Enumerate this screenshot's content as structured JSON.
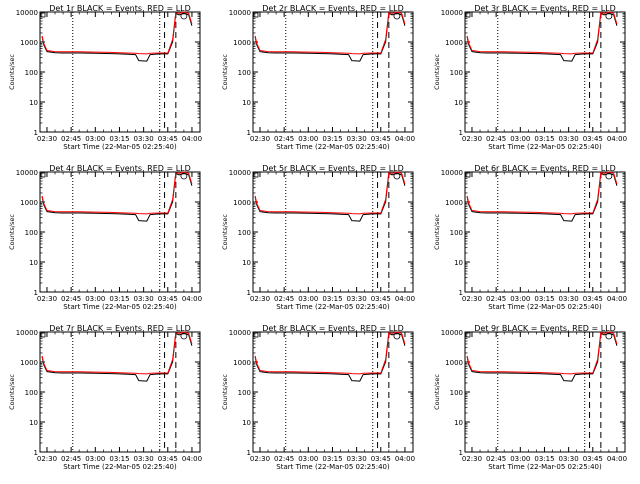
{
  "colors": {
    "events": "#000000",
    "lld": "#ff0000",
    "background": "#ffffff"
  },
  "chart_data": [
    {
      "type": "line",
      "title": "Det 1r BLACK = Events, RED = LLD",
      "xlabel": "Start Time (22-Mar-05 02:25:40)",
      "ylabel": "Counts/sec",
      "y_scale": "log",
      "ylim": [
        1,
        10000
      ],
      "x_tick_labels": [
        "02:30",
        "02:45",
        "03:00",
        "03:15",
        "03:30",
        "03:45",
        "04:00"
      ],
      "y_tick_labels": [
        "1",
        "10",
        "100",
        "1000",
        "10000"
      ],
      "x": [
        "02:27",
        "02:28",
        "02:30",
        "02:35",
        "02:40",
        "02:50",
        "03:00",
        "03:10",
        "03:15",
        "03:20",
        "03:25",
        "03:27",
        "03:32",
        "03:34",
        "03:40",
        "03:45",
        "03:48",
        "03:50",
        "03:52",
        "03:55",
        "03:58",
        "04:00"
      ],
      "series": [
        {
          "name": "Events",
          "values": [
            1500,
            800,
            480,
            440,
            430,
            430,
            420,
            410,
            400,
            390,
            380,
            240,
            230,
            380,
            400,
            400,
            1000,
            9000,
            8000,
            9000,
            8000,
            3500
          ]
        },
        {
          "name": "LLD",
          "values": [
            1600,
            900,
            520,
            480,
            470,
            470,
            460,
            450,
            440,
            430,
            420,
            410,
            400,
            420,
            430,
            430,
            1200,
            9500,
            9000,
            10000,
            9000,
            4000
          ]
        }
      ]
    },
    {
      "type": "line",
      "title": "Det 2r BLACK = Events, RED = LLD",
      "xlabel": "Start Time (22-Mar-05 02:25:40)",
      "ylabel": "Counts/sec",
      "y_scale": "log",
      "ylim": [
        1,
        10000
      ],
      "x_tick_labels": [
        "02:30",
        "02:45",
        "03:00",
        "03:15",
        "03:30",
        "03:45",
        "04:00"
      ],
      "y_tick_labels": [
        "1",
        "10",
        "100",
        "1000",
        "10000"
      ],
      "x": [
        "02:27",
        "02:28",
        "02:30",
        "02:35",
        "02:40",
        "02:50",
        "03:00",
        "03:10",
        "03:15",
        "03:20",
        "03:25",
        "03:27",
        "03:32",
        "03:34",
        "03:40",
        "03:45",
        "03:48",
        "03:50",
        "03:52",
        "03:55",
        "03:58",
        "04:00"
      ],
      "series": [
        {
          "name": "Events",
          "values": [
            1500,
            800,
            480,
            440,
            430,
            430,
            420,
            410,
            400,
            390,
            380,
            240,
            230,
            380,
            400,
            400,
            1000,
            9000,
            8000,
            9000,
            8000,
            3500
          ]
        },
        {
          "name": "LLD",
          "values": [
            1600,
            900,
            520,
            480,
            470,
            470,
            460,
            450,
            440,
            430,
            420,
            410,
            400,
            420,
            430,
            430,
            1200,
            9500,
            9000,
            10000,
            9000,
            4000
          ]
        }
      ]
    },
    {
      "type": "line",
      "title": "Det 3r BLACK = Events, RED = LLD",
      "xlabel": "Start Time (22-Mar-05 02:25:40)",
      "ylabel": "Counts/sec",
      "y_scale": "log",
      "ylim": [
        1,
        10000
      ],
      "x_tick_labels": [
        "02:30",
        "02:45",
        "03:00",
        "03:15",
        "03:30",
        "03:45",
        "04:00"
      ],
      "y_tick_labels": [
        "1",
        "10",
        "100",
        "1000",
        "10000"
      ],
      "x": [
        "02:27",
        "02:28",
        "02:30",
        "02:35",
        "02:40",
        "02:50",
        "03:00",
        "03:10",
        "03:15",
        "03:20",
        "03:25",
        "03:27",
        "03:32",
        "03:34",
        "03:40",
        "03:45",
        "03:48",
        "03:50",
        "03:52",
        "03:55",
        "03:58",
        "04:00"
      ],
      "series": [
        {
          "name": "Events",
          "values": [
            1500,
            800,
            480,
            440,
            430,
            430,
            420,
            410,
            400,
            390,
            380,
            240,
            230,
            380,
            400,
            400,
            1000,
            9000,
            8000,
            9000,
            8000,
            3500
          ]
        },
        {
          "name": "LLD",
          "values": [
            1600,
            900,
            520,
            480,
            470,
            470,
            460,
            450,
            440,
            430,
            420,
            410,
            400,
            420,
            430,
            430,
            1200,
            9500,
            9000,
            10000,
            9000,
            4000
          ]
        }
      ]
    },
    {
      "type": "line",
      "title": "Det 4r BLACK = Events, RED = LLD",
      "xlabel": "Start Time (22-Mar-05 02:25:40)",
      "ylabel": "Counts/sec",
      "y_scale": "log",
      "ylim": [
        1,
        10000
      ],
      "x_tick_labels": [
        "02:30",
        "02:45",
        "03:00",
        "03:15",
        "03:30",
        "03:45",
        "04:00"
      ],
      "y_tick_labels": [
        "1",
        "10",
        "100",
        "1000",
        "10000"
      ],
      "x": [
        "02:27",
        "02:28",
        "02:30",
        "02:35",
        "02:40",
        "02:50",
        "03:00",
        "03:10",
        "03:15",
        "03:20",
        "03:25",
        "03:27",
        "03:32",
        "03:34",
        "03:40",
        "03:45",
        "03:48",
        "03:50",
        "03:52",
        "03:55",
        "03:58",
        "04:00"
      ],
      "series": [
        {
          "name": "Events",
          "values": [
            1500,
            800,
            480,
            440,
            430,
            430,
            420,
            410,
            400,
            390,
            380,
            240,
            230,
            380,
            400,
            400,
            1000,
            9000,
            8000,
            9000,
            8000,
            3500
          ]
        },
        {
          "name": "LLD",
          "values": [
            1600,
            900,
            520,
            480,
            470,
            470,
            460,
            450,
            440,
            430,
            420,
            410,
            400,
            420,
            430,
            430,
            1200,
            9500,
            9000,
            10000,
            9000,
            4000
          ]
        }
      ]
    },
    {
      "type": "line",
      "title": "Det 5r BLACK = Events, RED = LLD",
      "xlabel": "Start Time (22-Mar-05 02:25:40)",
      "ylabel": "Counts/sec",
      "y_scale": "log",
      "ylim": [
        1,
        10000
      ],
      "x_tick_labels": [
        "02:30",
        "02:45",
        "03:00",
        "03:15",
        "03:30",
        "03:45",
        "04:00"
      ],
      "y_tick_labels": [
        "1",
        "10",
        "100",
        "1000",
        "10000"
      ],
      "x": [
        "02:27",
        "02:28",
        "02:30",
        "02:35",
        "02:40",
        "02:50",
        "03:00",
        "03:10",
        "03:15",
        "03:20",
        "03:25",
        "03:27",
        "03:32",
        "03:34",
        "03:40",
        "03:45",
        "03:48",
        "03:50",
        "03:52",
        "03:55",
        "03:58",
        "04:00"
      ],
      "series": [
        {
          "name": "Events",
          "values": [
            1500,
            800,
            480,
            440,
            430,
            430,
            420,
            410,
            400,
            390,
            380,
            240,
            230,
            380,
            400,
            400,
            1000,
            9000,
            8000,
            9000,
            8000,
            3500
          ]
        },
        {
          "name": "LLD",
          "values": [
            1600,
            900,
            520,
            480,
            470,
            470,
            460,
            450,
            440,
            430,
            420,
            410,
            400,
            420,
            430,
            430,
            1200,
            9500,
            9000,
            10000,
            9000,
            4000
          ]
        }
      ]
    },
    {
      "type": "line",
      "title": "Det 6r BLACK = Events, RED = LLD",
      "xlabel": "Start Time (22-Mar-05 02:25:40)",
      "ylabel": "Counts/sec",
      "y_scale": "log",
      "ylim": [
        1,
        10000
      ],
      "x_tick_labels": [
        "02:30",
        "02:45",
        "03:00",
        "03:15",
        "03:30",
        "03:45",
        "04:00"
      ],
      "y_tick_labels": [
        "1",
        "10",
        "100",
        "1000",
        "10000"
      ],
      "x": [
        "02:27",
        "02:28",
        "02:30",
        "02:35",
        "02:40",
        "02:50",
        "03:00",
        "03:10",
        "03:15",
        "03:20",
        "03:25",
        "03:27",
        "03:32",
        "03:34",
        "03:40",
        "03:45",
        "03:48",
        "03:50",
        "03:52",
        "03:55",
        "03:58",
        "04:00"
      ],
      "series": [
        {
          "name": "Events",
          "values": [
            1500,
            800,
            480,
            440,
            430,
            430,
            420,
            410,
            400,
            390,
            380,
            240,
            230,
            380,
            400,
            400,
            1000,
            9000,
            8000,
            9000,
            8000,
            3500
          ]
        },
        {
          "name": "LLD",
          "values": [
            1600,
            900,
            520,
            480,
            470,
            470,
            460,
            450,
            440,
            430,
            420,
            410,
            400,
            420,
            430,
            430,
            1200,
            9500,
            9000,
            10000,
            9000,
            4000
          ]
        }
      ]
    },
    {
      "type": "line",
      "title": "Det 7r BLACK = Events, RED = LLD",
      "xlabel": "Start Time (22-Mar-05 02:25:40)",
      "ylabel": "Counts/sec",
      "y_scale": "log",
      "ylim": [
        1,
        10000
      ],
      "x_tick_labels": [
        "02:30",
        "02:45",
        "03:00",
        "03:15",
        "03:30",
        "03:45",
        "04:00"
      ],
      "y_tick_labels": [
        "1",
        "10",
        "100",
        "1000",
        "10000"
      ],
      "x": [
        "02:27",
        "02:28",
        "02:30",
        "02:35",
        "02:40",
        "02:50",
        "03:00",
        "03:10",
        "03:15",
        "03:20",
        "03:25",
        "03:27",
        "03:32",
        "03:34",
        "03:40",
        "03:45",
        "03:48",
        "03:50",
        "03:52",
        "03:55",
        "03:58",
        "04:00"
      ],
      "series": [
        {
          "name": "Events",
          "values": [
            1500,
            800,
            480,
            440,
            430,
            430,
            420,
            410,
            400,
            390,
            380,
            240,
            230,
            380,
            400,
            400,
            1000,
            9000,
            8000,
            9000,
            8000,
            3500
          ]
        },
        {
          "name": "LLD",
          "values": [
            1600,
            900,
            520,
            480,
            470,
            470,
            460,
            450,
            440,
            430,
            420,
            410,
            400,
            420,
            430,
            430,
            1200,
            9500,
            9000,
            10000,
            9000,
            4000
          ]
        }
      ]
    },
    {
      "type": "line",
      "title": "Det 8r BLACK = Events, RED = LLD",
      "xlabel": "Start Time (22-Mar-05 02:25:40)",
      "ylabel": "Counts/sec",
      "y_scale": "log",
      "ylim": [
        1,
        10000
      ],
      "x_tick_labels": [
        "02:30",
        "02:45",
        "03:00",
        "03:15",
        "03:30",
        "03:45",
        "04:00"
      ],
      "y_tick_labels": [
        "1",
        "10",
        "100",
        "1000",
        "10000"
      ],
      "x": [
        "02:27",
        "02:28",
        "02:30",
        "02:35",
        "02:40",
        "02:50",
        "03:00",
        "03:10",
        "03:15",
        "03:20",
        "03:25",
        "03:27",
        "03:32",
        "03:34",
        "03:40",
        "03:45",
        "03:48",
        "03:50",
        "03:52",
        "03:55",
        "03:58",
        "04:00"
      ],
      "series": [
        {
          "name": "Events",
          "values": [
            1500,
            800,
            480,
            440,
            430,
            430,
            420,
            410,
            400,
            390,
            380,
            240,
            230,
            380,
            400,
            400,
            1000,
            9000,
            8000,
            9000,
            8000,
            3500
          ]
        },
        {
          "name": "LLD",
          "values": [
            1600,
            900,
            520,
            480,
            470,
            470,
            460,
            450,
            440,
            430,
            420,
            410,
            400,
            420,
            430,
            430,
            1200,
            9500,
            9000,
            10000,
            9000,
            4000
          ]
        }
      ]
    },
    {
      "type": "line",
      "title": "Det 9r BLACK = Events, RED = LLD",
      "xlabel": "Start Time (22-Mar-05 02:25:40)",
      "ylabel": "Counts/sec",
      "y_scale": "log",
      "ylim": [
        1,
        10000
      ],
      "x_tick_labels": [
        "02:30",
        "02:45",
        "03:00",
        "03:15",
        "03:30",
        "03:45",
        "04:00"
      ],
      "y_tick_labels": [
        "1",
        "10",
        "100",
        "1000",
        "10000"
      ],
      "x": [
        "02:27",
        "02:28",
        "02:30",
        "02:35",
        "02:40",
        "02:50",
        "03:00",
        "03:10",
        "03:15",
        "03:20",
        "03:25",
        "03:27",
        "03:32",
        "03:34",
        "03:40",
        "03:45",
        "03:48",
        "03:50",
        "03:52",
        "03:55",
        "03:58",
        "04:00"
      ],
      "series": [
        {
          "name": "Events",
          "values": [
            1500,
            800,
            480,
            440,
            430,
            430,
            420,
            410,
            400,
            390,
            380,
            240,
            230,
            380,
            400,
            400,
            1000,
            9000,
            8000,
            9000,
            8000,
            3500
          ]
        },
        {
          "name": "LLD",
          "values": [
            1600,
            900,
            520,
            480,
            470,
            470,
            460,
            450,
            440,
            430,
            420,
            410,
            400,
            420,
            430,
            430,
            1200,
            9500,
            9000,
            10000,
            9000,
            4000
          ]
        }
      ]
    }
  ]
}
